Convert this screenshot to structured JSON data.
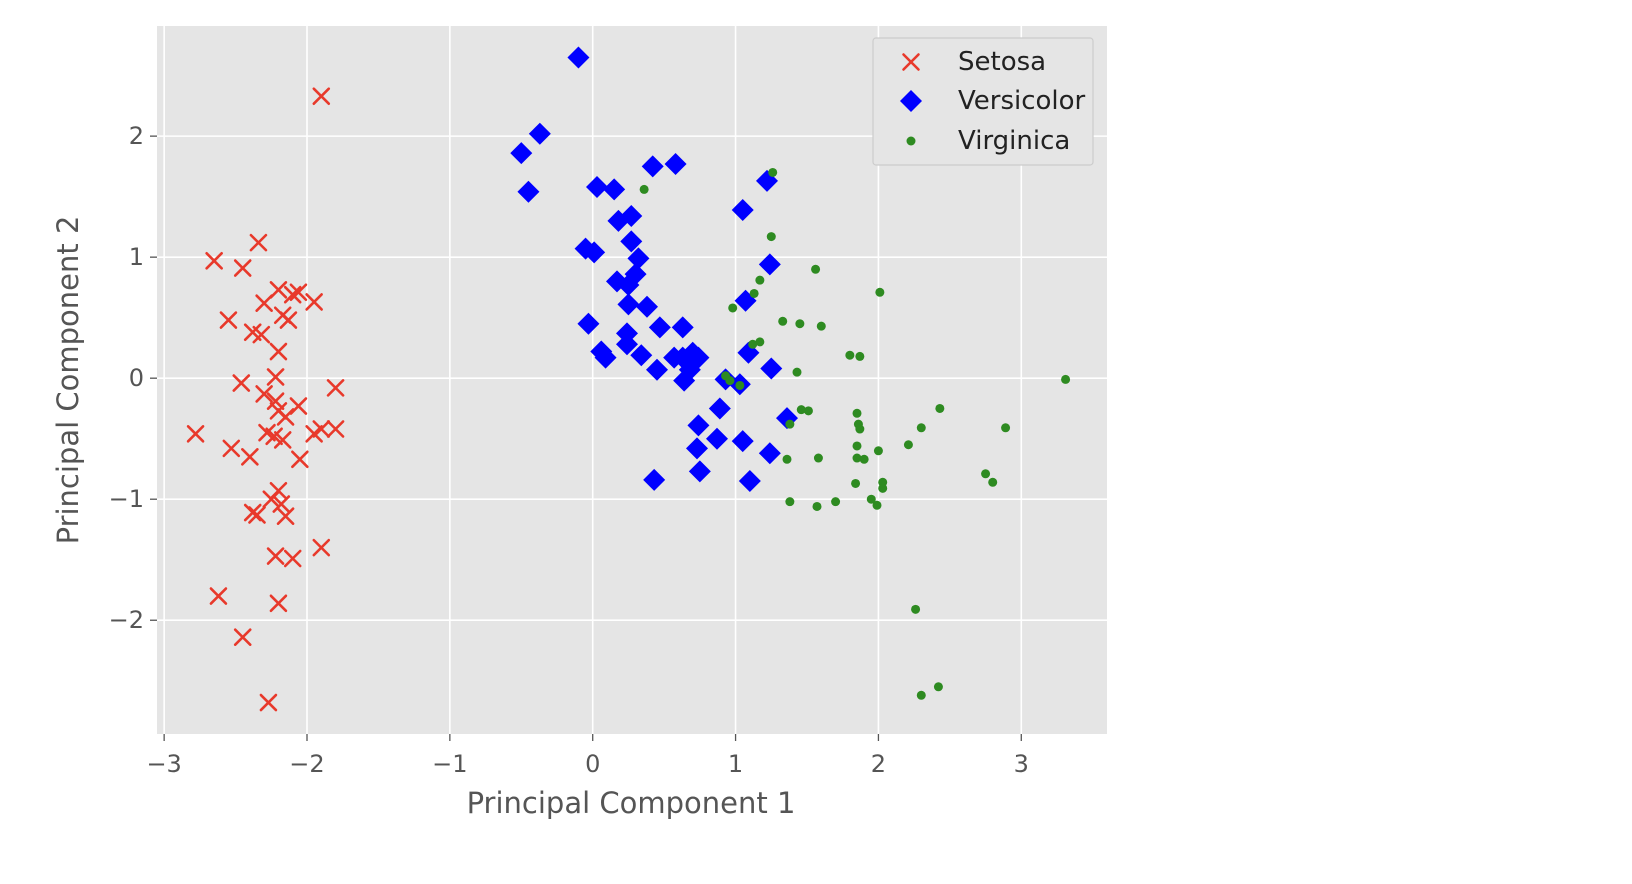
{
  "chart_data": {
    "type": "scatter",
    "xlabel": "Principal Component 1",
    "ylabel": "Principal Component 2",
    "xlim": [
      -3.05,
      3.6
    ],
    "ylim": [
      -2.94,
      2.91
    ],
    "xticks": [
      -3,
      -2,
      -1,
      0,
      1,
      2,
      3
    ],
    "yticks": [
      -2,
      -1,
      0,
      1,
      2
    ],
    "xtick_labels": [
      "−3",
      "−2",
      "−1",
      "0",
      "1",
      "2",
      "3"
    ],
    "ytick_labels": [
      "−2",
      "−1",
      "0",
      "1",
      "2"
    ],
    "grid": true,
    "background": "#e5e5e5",
    "legend_position": "top-right",
    "series": [
      {
        "name": "Setosa",
        "marker": "x",
        "color": "#e8392b",
        "points": [
          [
            -1.9,
            2.33
          ],
          [
            -2.34,
            1.12
          ],
          [
            -2.65,
            0.97
          ],
          [
            -2.45,
            0.91
          ],
          [
            -2.2,
            0.73
          ],
          [
            -2.06,
            0.71
          ],
          [
            -2.1,
            0.69
          ],
          [
            -1.95,
            0.63
          ],
          [
            -2.3,
            0.62
          ],
          [
            -2.17,
            0.52
          ],
          [
            -2.55,
            0.48
          ],
          [
            -2.13,
            0.48
          ],
          [
            -2.38,
            0.38
          ],
          [
            -2.32,
            0.36
          ],
          [
            -2.2,
            0.22
          ],
          [
            -2.22,
            0.01
          ],
          [
            -2.46,
            -0.04
          ],
          [
            -1.8,
            -0.08
          ],
          [
            -2.3,
            -0.13
          ],
          [
            -2.22,
            -0.19
          ],
          [
            -2.06,
            -0.23
          ],
          [
            -2.2,
            -0.27
          ],
          [
            -2.15,
            -0.32
          ],
          [
            -2.78,
            -0.46
          ],
          [
            -2.28,
            -0.45
          ],
          [
            -2.23,
            -0.48
          ],
          [
            -2.17,
            -0.51
          ],
          [
            -1.95,
            -0.46
          ],
          [
            -1.9,
            -0.42
          ],
          [
            -1.8,
            -0.42
          ],
          [
            -2.53,
            -0.58
          ],
          [
            -2.4,
            -0.65
          ],
          [
            -2.05,
            -0.67
          ],
          [
            -2.2,
            -0.93
          ],
          [
            -2.25,
            -1.0
          ],
          [
            -2.18,
            -1.04
          ],
          [
            -2.38,
            -1.11
          ],
          [
            -2.35,
            -1.13
          ],
          [
            -2.15,
            -1.14
          ],
          [
            -2.22,
            -1.47
          ],
          [
            -2.1,
            -1.49
          ],
          [
            -1.9,
            -1.4
          ],
          [
            -2.62,
            -1.8
          ],
          [
            -2.2,
            -1.86
          ],
          [
            -2.45,
            -2.14
          ],
          [
            -2.27,
            -2.68
          ]
        ]
      },
      {
        "name": "Versicolor",
        "marker": "D",
        "color": "#0000ff",
        "points": [
          [
            -0.1,
            2.65
          ],
          [
            -0.37,
            2.02
          ],
          [
            -0.5,
            1.86
          ],
          [
            -0.45,
            1.54
          ],
          [
            0.42,
            1.75
          ],
          [
            0.58,
            1.77
          ],
          [
            0.03,
            1.58
          ],
          [
            0.15,
            1.56
          ],
          [
            0.18,
            1.3
          ],
          [
            0.27,
            1.34
          ],
          [
            0.27,
            1.13
          ],
          [
            -0.05,
            1.07
          ],
          [
            0.01,
            1.04
          ],
          [
            0.32,
            0.99
          ],
          [
            0.3,
            0.86
          ],
          [
            0.17,
            0.8
          ],
          [
            0.25,
            0.77
          ],
          [
            0.25,
            0.61
          ],
          [
            0.38,
            0.59
          ],
          [
            0.63,
            0.42
          ],
          [
            0.47,
            0.42
          ],
          [
            -0.03,
            0.45
          ],
          [
            0.24,
            0.37
          ],
          [
            0.24,
            0.28
          ],
          [
            0.06,
            0.22
          ],
          [
            0.09,
            0.17
          ],
          [
            0.34,
            0.19
          ],
          [
            0.57,
            0.17
          ],
          [
            0.63,
            0.17
          ],
          [
            0.7,
            0.21
          ],
          [
            0.74,
            0.17
          ],
          [
            0.45,
            0.07
          ],
          [
            0.68,
            0.07
          ],
          [
            0.64,
            -0.02
          ],
          [
            0.93,
            -0.01
          ],
          [
            1.09,
            0.21
          ],
          [
            1.25,
            0.08
          ],
          [
            1.03,
            -0.05
          ],
          [
            0.89,
            -0.25
          ],
          [
            1.36,
            -0.33
          ],
          [
            0.74,
            -0.39
          ],
          [
            0.87,
            -0.5
          ],
          [
            1.05,
            -0.52
          ],
          [
            0.73,
            -0.58
          ],
          [
            1.24,
            -0.62
          ],
          [
            0.75,
            -0.77
          ],
          [
            0.43,
            -0.84
          ],
          [
            1.1,
            -0.85
          ],
          [
            1.22,
            1.63
          ],
          [
            1.05,
            1.39
          ],
          [
            1.24,
            0.94
          ],
          [
            1.07,
            0.64
          ]
        ]
      },
      {
        "name": "Virginica",
        "marker": "o",
        "color": "#2e8b21",
        "points": [
          [
            1.26,
            1.7
          ],
          [
            0.36,
            1.56
          ],
          [
            1.25,
            1.17
          ],
          [
            1.56,
            0.9
          ],
          [
            2.01,
            0.71
          ],
          [
            1.17,
            0.81
          ],
          [
            1.13,
            0.7
          ],
          [
            0.98,
            0.58
          ],
          [
            1.33,
            0.47
          ],
          [
            1.45,
            0.45
          ],
          [
            1.6,
            0.43
          ],
          [
            1.17,
            0.3
          ],
          [
            1.12,
            0.28
          ],
          [
            1.8,
            0.19
          ],
          [
            1.87,
            0.18
          ],
          [
            1.43,
            0.05
          ],
          [
            0.93,
            0.02
          ],
          [
            0.96,
            -0.02
          ],
          [
            1.03,
            -0.06
          ],
          [
            3.31,
            -0.01
          ],
          [
            2.43,
            -0.25
          ],
          [
            1.46,
            -0.26
          ],
          [
            1.51,
            -0.27
          ],
          [
            1.85,
            -0.29
          ],
          [
            1.38,
            -0.38
          ],
          [
            1.86,
            -0.38
          ],
          [
            1.87,
            -0.42
          ],
          [
            2.3,
            -0.41
          ],
          [
            2.89,
            -0.41
          ],
          [
            2.21,
            -0.55
          ],
          [
            1.85,
            -0.56
          ],
          [
            2.0,
            -0.6
          ],
          [
            1.36,
            -0.67
          ],
          [
            1.58,
            -0.66
          ],
          [
            1.85,
            -0.66
          ],
          [
            1.9,
            -0.67
          ],
          [
            2.75,
            -0.79
          ],
          [
            2.8,
            -0.86
          ],
          [
            2.03,
            -0.86
          ],
          [
            1.84,
            -0.87
          ],
          [
            2.03,
            -0.91
          ],
          [
            1.38,
            -1.02
          ],
          [
            1.7,
            -1.02
          ],
          [
            1.95,
            -1.0
          ],
          [
            1.57,
            -1.06
          ],
          [
            1.99,
            -1.05
          ],
          [
            2.26,
            -1.91
          ],
          [
            2.3,
            -2.62
          ],
          [
            2.42,
            -2.55
          ]
        ]
      }
    ]
  }
}
